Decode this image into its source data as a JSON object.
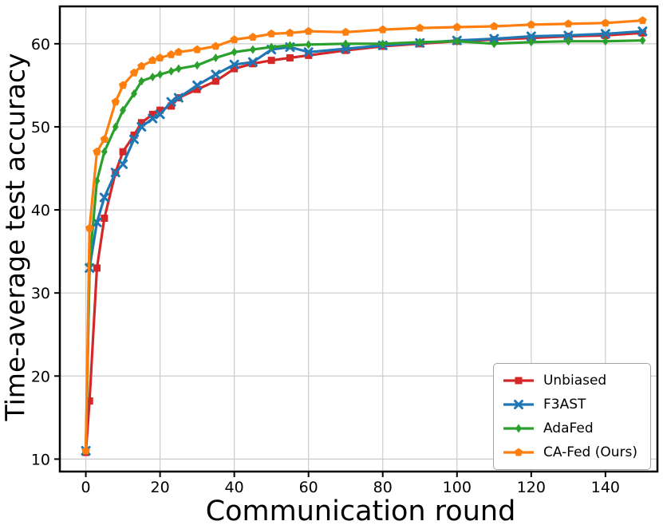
{
  "chart_data": {
    "type": "line",
    "title": "",
    "xlabel": "Communication round",
    "ylabel": "Time-average test accuracy",
    "xlim": [
      -7,
      154
    ],
    "ylim": [
      8.5,
      64.5
    ],
    "xticks": [
      0,
      20,
      40,
      60,
      80,
      100,
      120,
      140
    ],
    "yticks": [
      10,
      20,
      30,
      40,
      50,
      60
    ],
    "grid": true,
    "grid_color": "#cccccc",
    "legend_position": "lower right",
    "x": [
      0,
      1,
      3,
      5,
      8,
      10,
      13,
      15,
      18,
      20,
      23,
      25,
      30,
      35,
      40,
      45,
      50,
      55,
      60,
      70,
      80,
      90,
      100,
      110,
      120,
      130,
      140,
      150
    ],
    "series": [
      {
        "name": "Unbiased",
        "color": "#d62728",
        "marker": "square",
        "values": [
          10.8,
          17,
          33,
          39,
          44.5,
          47,
          49,
          50.5,
          51.5,
          52,
          52.5,
          53.5,
          54.5,
          55.5,
          57,
          57.6,
          58,
          58.3,
          58.6,
          59.2,
          59.7,
          60,
          60.3,
          60.5,
          60.7,
          60.9,
          61,
          61.3
        ]
      },
      {
        "name": "F3AST",
        "color": "#1f77b4",
        "marker": "x",
        "values": [
          11,
          33,
          38.5,
          41.5,
          44.5,
          45.5,
          48.5,
          50,
          51,
          51.5,
          53,
          53.5,
          55,
          56.3,
          57.5,
          57.8,
          59.3,
          59.6,
          59,
          59.4,
          59.8,
          60.1,
          60.4,
          60.6,
          60.9,
          61,
          61.2,
          61.5
        ]
      },
      {
        "name": "AdaFed",
        "color": "#2ca02c",
        "marker": "diamond",
        "values": [
          11,
          33.5,
          43.5,
          47,
          50,
          52,
          54,
          55.5,
          56,
          56.3,
          56.7,
          57,
          57.4,
          58.3,
          59,
          59.3,
          59.6,
          59.8,
          59.9,
          60,
          60,
          60.2,
          60.3,
          60,
          60.2,
          60.3,
          60.3,
          60.4
        ]
      },
      {
        "name": "CA-Fed (Ours)",
        "color": "#ff7f0e",
        "marker": "pentagon",
        "values": [
          11,
          37.8,
          47,
          48.5,
          53,
          55,
          56.5,
          57.3,
          58,
          58.3,
          58.7,
          59,
          59.3,
          59.7,
          60.5,
          60.8,
          61.2,
          61.3,
          61.5,
          61.4,
          61.7,
          61.9,
          62,
          62.1,
          62.3,
          62.4,
          62.5,
          62.8
        ]
      }
    ]
  }
}
